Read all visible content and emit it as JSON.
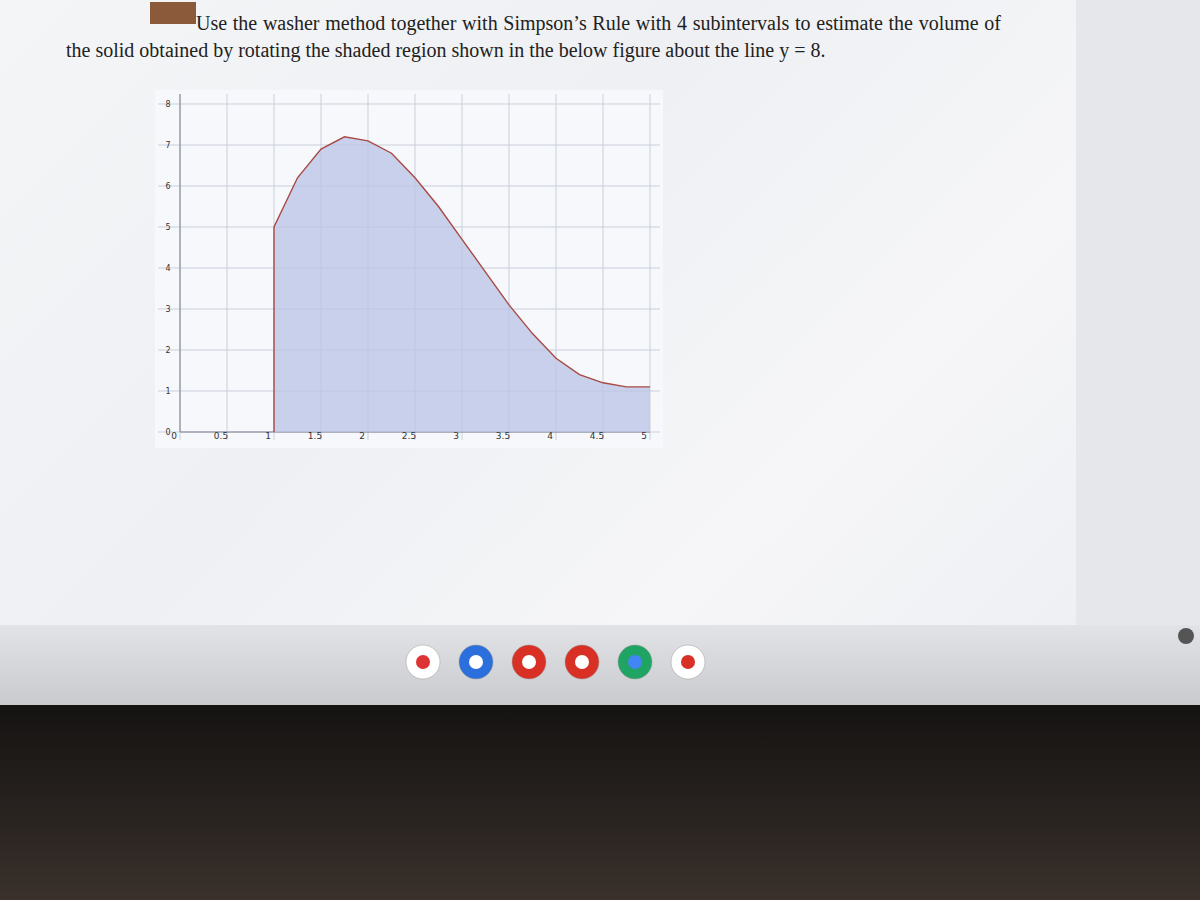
{
  "chart_data": {
    "type": "area",
    "title": "Use the washer method together with Simpson’s Rule with 4 subintervals to estimate the volume of the solid obtained by rotating the shaded region shown in the below figure about the line y = 8.",
    "x": [
      1,
      1.25,
      1.5,
      1.75,
      2,
      2.25,
      2.5,
      2.75,
      3,
      3.25,
      3.5,
      3.75,
      4,
      4.25,
      4.5,
      4.75,
      5
    ],
    "values": [
      5,
      6.2,
      6.9,
      7.2,
      7.1,
      6.8,
      6.2,
      5.5,
      4.7,
      3.9,
      3.1,
      2.4,
      1.8,
      1.4,
      1.2,
      1.1,
      1.1
    ],
    "color": "#b9c3e6",
    "xlim": [
      0,
      5
    ],
    "xticks": [
      0,
      0.5,
      1,
      1.5,
      2,
      2.5,
      3,
      3.5,
      4,
      4.5,
      5
    ],
    "ylim": [
      0,
      8
    ],
    "yticks": [
      0,
      1,
      2,
      3,
      4,
      5,
      6,
      7,
      8
    ],
    "grid": true
  }
}
